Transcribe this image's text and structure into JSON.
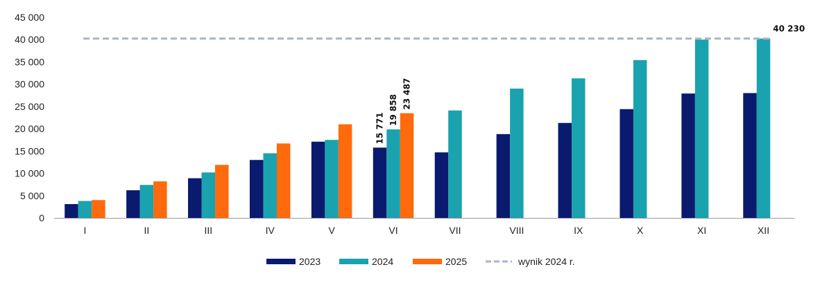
{
  "chart_data": {
    "type": "bar",
    "categories": [
      "I",
      "II",
      "III",
      "IV",
      "V",
      "VI",
      "VII",
      "VIII",
      "IX",
      "X",
      "XI",
      "XII"
    ],
    "series": [
      {
        "name": "2023",
        "color": "#0a1a6e",
        "values": [
          3100,
          6200,
          8900,
          13000,
          17100,
          15771,
          14700,
          18800,
          21300,
          24400,
          27900,
          28000
        ]
      },
      {
        "name": "2024",
        "color": "#1aa2af",
        "values": [
          3800,
          7400,
          10200,
          14500,
          17500,
          19858,
          24100,
          29000,
          31300,
          35400,
          40000,
          40230
        ]
      },
      {
        "name": "2025",
        "color": "#ff6a0d",
        "values": [
          4000,
          8200,
          11900,
          16700,
          21000,
          23487,
          null,
          null,
          null,
          null,
          null,
          null
        ]
      }
    ],
    "reference_line": {
      "name": "wynik 2024 r.",
      "value": 40230,
      "color": "#aab4c8",
      "style": "dashed"
    },
    "data_labels": [
      {
        "series": "2023",
        "category": "VI",
        "text": "15 771"
      },
      {
        "series": "2024",
        "category": "VI",
        "text": "19 858"
      },
      {
        "series": "2025",
        "category": "VI",
        "text": "23 487"
      },
      {
        "series": "2024",
        "category": "XII",
        "text": "40 230"
      }
    ],
    "y_ticks": [
      "0",
      "5 000",
      "10 000",
      "15 000",
      "20 000",
      "25 000",
      "30 000",
      "35 000",
      "40 000",
      "45 000"
    ],
    "ylim": [
      0,
      45000
    ],
    "title": "",
    "xlabel": "",
    "ylabel": "",
    "grid": false,
    "legend_position": "bottom"
  }
}
